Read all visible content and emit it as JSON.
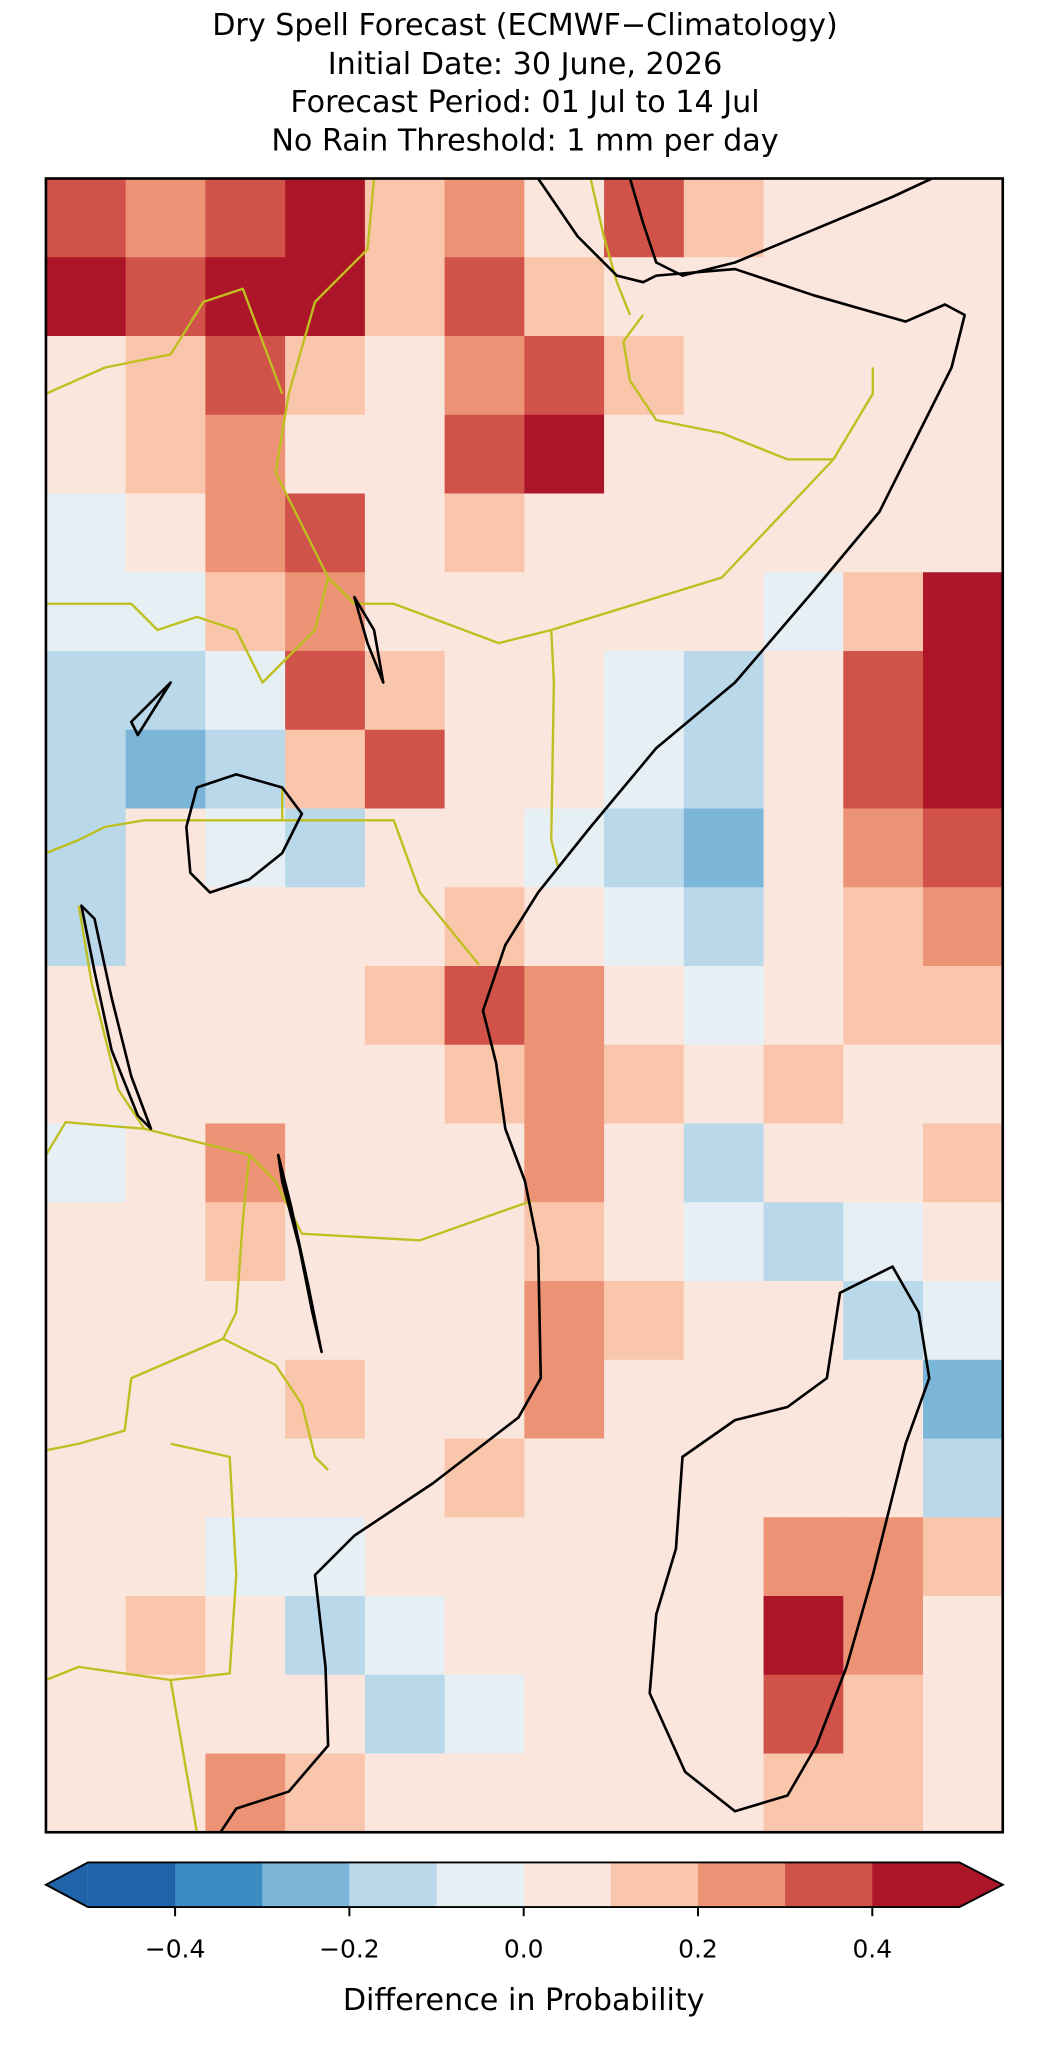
{
  "chart_data": {
    "type": "heatmap",
    "title": [
      "Dry Spell Forecast (ECMWF−Climatology)",
      "Initial Date: 30 June, 2026",
      "Forecast Period: 01 Jul to 14 Jul",
      "No Rain Threshold: 1 mm per day"
    ],
    "values": [
      [
        0.35,
        0.25,
        0.35,
        0.45,
        0.15,
        0.25,
        0.05,
        0.35,
        0.15,
        0.05,
        0.05,
        0.05
      ],
      [
        0.45,
        0.35,
        0.45,
        0.45,
        0.15,
        0.35,
        0.15,
        0.05,
        0.05,
        0.05,
        0.05,
        0.05
      ],
      [
        0.05,
        0.15,
        0.35,
        0.15,
        0.05,
        0.25,
        0.35,
        0.15,
        0.05,
        0.05,
        0.05,
        0.05
      ],
      [
        0.05,
        0.15,
        0.25,
        0.05,
        0.05,
        0.35,
        0.45,
        0.05,
        0.05,
        0.05,
        0.05,
        0.05
      ],
      [
        -0.05,
        0.05,
        0.25,
        0.35,
        0.05,
        0.15,
        0.05,
        0.05,
        0.05,
        0.05,
        0.05,
        0.05
      ],
      [
        -0.05,
        -0.05,
        0.15,
        0.25,
        0.05,
        0.05,
        0.05,
        0.05,
        0.05,
        -0.05,
        0.15,
        0.45
      ],
      [
        -0.15,
        -0.15,
        -0.05,
        0.35,
        0.15,
        0.05,
        0.05,
        -0.05,
        -0.15,
        0.05,
        0.35,
        0.45
      ],
      [
        -0.15,
        -0.25,
        -0.15,
        0.15,
        0.35,
        0.05,
        0.05,
        -0.05,
        -0.15,
        0.05,
        0.35,
        0.45
      ],
      [
        -0.15,
        0.05,
        -0.05,
        -0.15,
        0.05,
        0.05,
        -0.05,
        -0.15,
        -0.25,
        0.05,
        0.25,
        0.35
      ],
      [
        -0.15,
        0.05,
        0.05,
        0.05,
        0.05,
        0.15,
        0.05,
        -0.05,
        -0.15,
        0.05,
        0.15,
        0.25
      ],
      [
        0.05,
        0.05,
        0.05,
        0.05,
        0.15,
        0.35,
        0.25,
        0.05,
        -0.05,
        0.05,
        0.15,
        0.15
      ],
      [
        0.05,
        0.05,
        0.05,
        0.05,
        0.05,
        0.15,
        0.25,
        0.15,
        0.05,
        0.15,
        0.05,
        0.05
      ],
      [
        -0.05,
        0.05,
        0.25,
        0.05,
        0.05,
        0.05,
        0.25,
        0.05,
        -0.15,
        0.05,
        0.05,
        0.15
      ],
      [
        0.05,
        0.05,
        0.15,
        0.05,
        0.05,
        0.05,
        0.15,
        0.05,
        -0.05,
        -0.15,
        -0.05,
        0.05
      ],
      [
        0.05,
        0.05,
        0.05,
        0.05,
        0.05,
        0.05,
        0.25,
        0.15,
        0.05,
        0.05,
        -0.15,
        -0.05
      ],
      [
        0.05,
        0.05,
        0.05,
        0.15,
        0.05,
        0.05,
        0.25,
        0.05,
        0.05,
        0.05,
        0.05,
        -0.25
      ],
      [
        0.05,
        0.05,
        0.05,
        0.05,
        0.05,
        0.15,
        0.05,
        0.05,
        0.05,
        0.05,
        0.05,
        -0.15
      ],
      [
        0.05,
        0.05,
        -0.05,
        -0.05,
        0.05,
        0.05,
        0.05,
        0.05,
        0.05,
        0.25,
        0.25,
        0.15
      ],
      [
        0.05,
        0.15,
        0.05,
        -0.15,
        -0.05,
        0.05,
        0.05,
        0.05,
        0.05,
        0.45,
        0.25,
        0.05
      ],
      [
        0.05,
        0.05,
        0.05,
        0.05,
        -0.15,
        -0.05,
        0.05,
        0.05,
        0.05,
        0.35,
        0.15,
        0.05
      ],
      [
        0.05,
        0.05,
        0.25,
        0.15,
        0.05,
        0.05,
        0.05,
        0.05,
        0.05,
        0.15,
        0.15,
        0.05
      ]
    ],
    "colorbar": {
      "label": "Difference in Probability",
      "boundaries": [
        -0.5,
        -0.4,
        -0.3,
        -0.2,
        -0.1,
        0,
        0.1,
        0.2,
        0.3,
        0.4,
        0.5
      ],
      "colors": [
        "#1f63a8",
        "#3c8bc2",
        "#7bb5d8",
        "#b9d8ea",
        "#e6eff4",
        "#fae6dd",
        "#f9c5ab",
        "#ec9275",
        "#d15249",
        "#ad1529"
      ],
      "extend": "both",
      "ticks": [
        {
          "value": -0.4,
          "label": "−0.4"
        },
        {
          "value": -0.2,
          "label": "−0.2"
        },
        {
          "value": 0,
          "label": "0.0"
        },
        0.2,
        0.4
      ]
    }
  }
}
